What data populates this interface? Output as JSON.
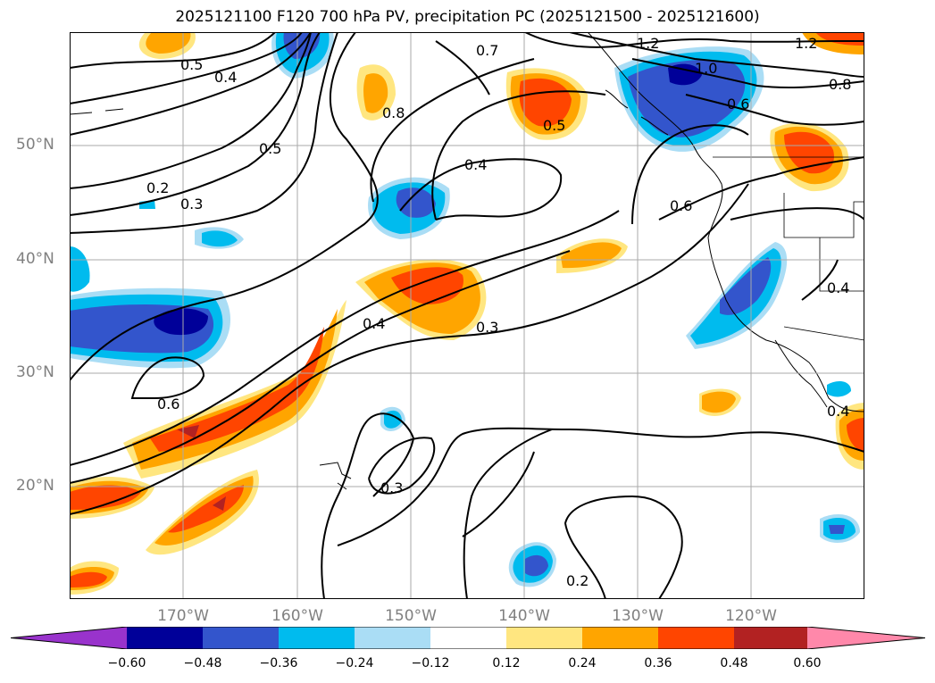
{
  "title": "2025121100 F120 700 hPa PV, precipitation PC (2025121500 - 2025121600)",
  "lat_labels": [
    "50°N",
    "40°N",
    "30°N",
    "20°N"
  ],
  "lon_labels": [
    "170°W",
    "160°W",
    "150°W",
    "140°W",
    "130°W",
    "120°W"
  ],
  "contour_labels": [
    "0.7",
    "1.2",
    "1.2",
    "1.0",
    "0.8",
    "0.6",
    "0.5",
    "0.4",
    "0.8",
    "0.5",
    "0.5",
    "0.4",
    "0.2",
    "0.3",
    "0.6",
    "0.4",
    "0.3",
    "0.4",
    "0.6",
    "0.3",
    "0.2",
    "0.4"
  ],
  "colorbar": {
    "ticks": [
      "−0.60",
      "−0.48",
      "−0.36",
      "−0.24",
      "−0.12",
      "0.12",
      "0.24",
      "0.36",
      "0.48",
      "0.60"
    ],
    "colors": [
      "#9933cc",
      "#000099",
      "#3355cc",
      "#00bbee",
      "#aaddf5",
      "#ffffff",
      "#ffe680",
      "#ffa500",
      "#ff4500",
      "#b22222",
      "#ff88aa"
    ]
  },
  "colors": {
    "neg1": "#aaddf5",
    "neg2": "#00bbee",
    "neg3": "#3355cc",
    "neg4": "#000099",
    "pos1": "#ffe680",
    "pos2": "#ffa500",
    "pos3": "#ff4500",
    "pos4": "#b22222"
  }
}
